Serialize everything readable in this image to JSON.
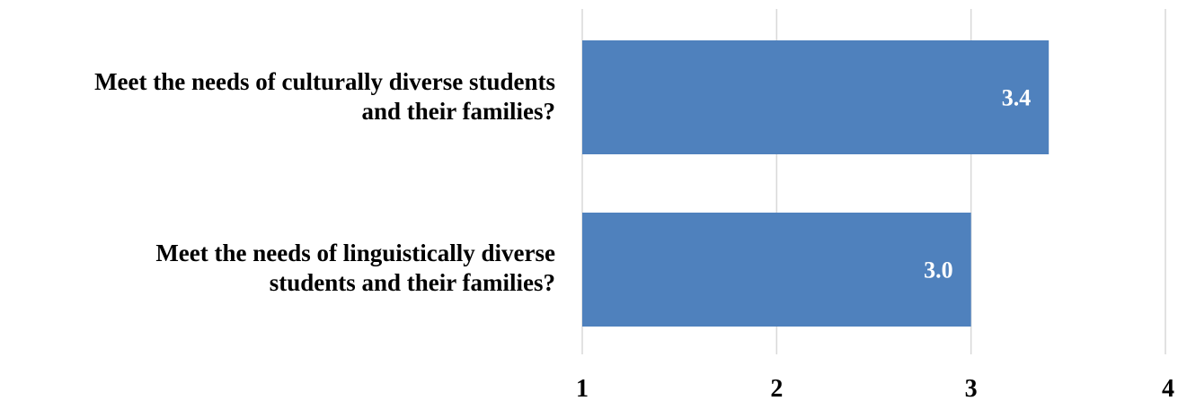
{
  "colors": {
    "bar": "#4f81bd",
    "grid": "#d9d9d9",
    "bar_label": "#ffffff",
    "text": "#000000"
  },
  "chart_data": {
    "type": "bar",
    "orientation": "horizontal",
    "title": "",
    "xlabel": "",
    "ylabel": "",
    "categories": [
      "Meet the needs of culturally diverse students\nand their families?",
      "Meet the needs of linguistically diverse\nstudents and their families?"
    ],
    "values": [
      3.4,
      3.0
    ],
    "value_labels": [
      "3.4",
      "3.0"
    ],
    "xlim": [
      1,
      4
    ],
    "x_ticks": [
      1,
      2,
      3,
      4
    ],
    "x_tick_labels": [
      "1",
      "2",
      "3",
      "4"
    ],
    "grid": true,
    "legend": "none"
  }
}
